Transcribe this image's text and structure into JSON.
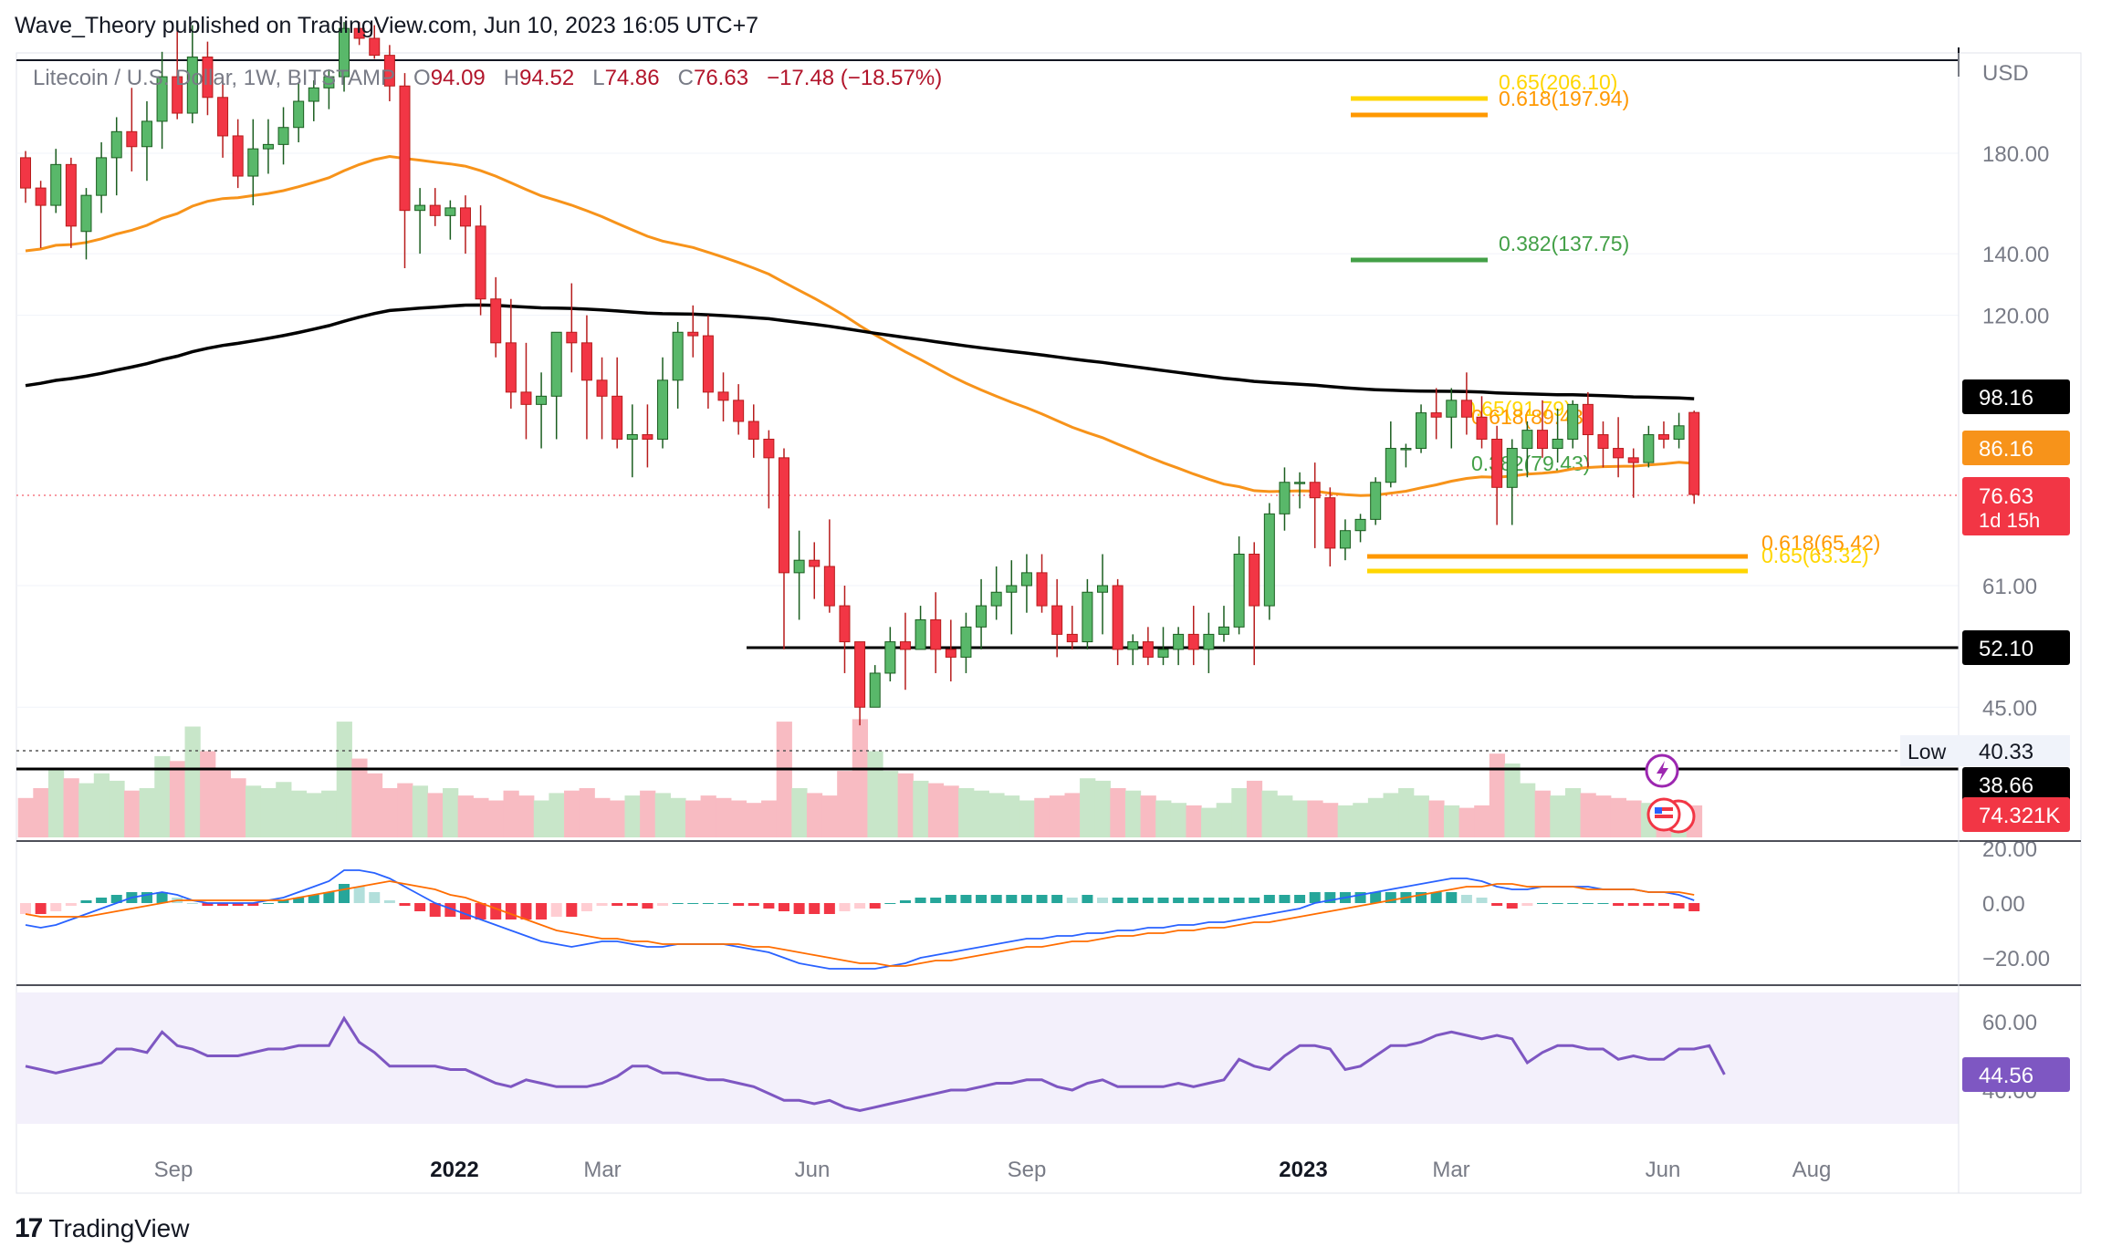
{
  "header": {
    "publisher": "Wave_Theory published on TradingView.com, Jun 10, 2023 16:05 UTC+7"
  },
  "legend": {
    "symbol": "Litecoin / U.S. Dollar, 1W, BITSTAMP",
    "o_label": "O",
    "o": "94.09",
    "h_label": "H",
    "h": "94.52",
    "l_label": "L",
    "l": "74.86",
    "c_label": "C",
    "c": "76.63",
    "change": "−17.48 (−18.57%)"
  },
  "footer": {
    "brand": "TradingView"
  },
  "colors": {
    "up": "#26a69a",
    "up_fill": "#59b86a",
    "down": "#f23645",
    "ema50": "#f7931a",
    "ma200": "#000000",
    "macd": "#2962ff",
    "signal": "#ff6d00",
    "rsi": "#7e57c2",
    "fib_gold": "#ffd600",
    "fib_orange": "#ff9800",
    "fib_green": "#43a047"
  },
  "chart_data": [
    {
      "type": "candlestick",
      "pane": "price",
      "scale": "log",
      "currency": "USD",
      "y_ticks": [
        "180.00",
        "140.00",
        "120.00",
        "61.00",
        "45.00"
      ],
      "x_ticks": [
        "Sep",
        "2022",
        "Mar",
        "Jun",
        "Sep",
        "2023",
        "Mar",
        "Jun",
        "Aug"
      ],
      "interval": "1W",
      "candles_ohlc": [
        [
          178,
          181,
          159,
          165
        ],
        [
          165,
          168,
          142,
          158
        ],
        [
          158,
          182,
          155,
          175
        ],
        [
          175,
          178,
          142,
          150
        ],
        [
          148,
          165,
          138,
          162
        ],
        [
          162,
          185,
          155,
          178
        ],
        [
          178,
          197,
          162,
          190
        ],
        [
          190,
          212,
          172,
          183
        ],
        [
          183,
          205,
          168,
          195
        ],
        [
          195,
          232,
          182,
          218
        ],
        [
          218,
          245,
          196,
          199
        ],
        [
          199,
          248,
          194,
          229
        ],
        [
          229,
          238,
          198,
          207
        ],
        [
          207,
          218,
          178,
          188
        ],
        [
          188,
          196,
          165,
          170
        ],
        [
          170,
          196,
          158,
          182
        ],
        [
          182,
          196,
          171,
          184
        ],
        [
          184,
          202,
          175,
          192
        ],
        [
          192,
          215,
          185,
          205
        ],
        [
          205,
          216,
          195,
          212
        ],
        [
          212,
          222,
          201,
          218
        ],
        [
          218,
          250,
          210,
          246
        ],
        [
          246,
          250,
          236,
          240
        ],
        [
          240,
          248,
          228,
          230
        ],
        [
          230,
          236,
          205,
          213
        ],
        [
          213,
          220,
          135,
          156
        ],
        [
          156,
          165,
          140,
          158
        ],
        [
          158,
          165,
          150,
          154
        ],
        [
          154,
          160,
          145,
          157
        ],
        [
          157,
          162,
          140,
          150
        ],
        [
          150,
          158,
          120,
          125
        ],
        [
          125,
          132,
          108,
          112
        ],
        [
          112,
          125,
          95,
          99
        ],
        [
          99,
          112,
          88,
          96
        ],
        [
          96,
          104,
          86,
          98
        ],
        [
          98,
          108,
          88,
          115
        ],
        [
          115,
          130,
          104,
          112
        ],
        [
          112,
          120,
          88,
          102
        ],
        [
          102,
          108,
          88,
          98
        ],
        [
          98,
          108,
          86,
          88
        ],
        [
          88,
          96,
          80,
          89
        ],
        [
          89,
          96,
          82,
          88
        ],
        [
          88,
          108,
          86,
          102
        ],
        [
          102,
          118,
          95,
          115
        ],
        [
          115,
          123,
          108,
          114
        ],
        [
          114,
          120,
          95,
          99
        ],
        [
          99,
          104,
          92,
          97
        ],
        [
          97,
          101,
          89,
          92
        ],
        [
          92,
          96,
          84,
          88
        ],
        [
          88,
          90,
          74,
          84
        ],
        [
          84,
          86,
          52,
          63
        ],
        [
          63,
          70,
          56,
          65
        ],
        [
          65,
          68,
          59,
          64
        ],
        [
          64,
          72,
          57,
          58
        ],
        [
          58,
          61,
          49,
          53
        ],
        [
          53,
          53,
          43,
          45
        ],
        [
          45,
          50,
          45,
          49
        ],
        [
          49,
          55,
          48,
          53
        ],
        [
          53,
          57,
          47,
          52
        ],
        [
          52,
          58,
          52,
          56
        ],
        [
          56,
          60,
          49,
          52
        ],
        [
          52,
          56,
          48,
          51
        ],
        [
          51,
          57,
          49,
          55
        ],
        [
          55,
          62,
          52,
          58
        ],
        [
          58,
          64,
          56,
          60
        ],
        [
          60,
          65,
          54,
          61
        ],
        [
          61,
          66,
          57,
          63
        ],
        [
          63,
          66,
          57,
          58
        ],
        [
          58,
          62,
          51,
          54
        ],
        [
          54,
          58,
          52,
          53
        ],
        [
          53,
          62,
          52,
          60
        ],
        [
          60,
          66,
          54,
          61
        ],
        [
          61,
          62,
          50,
          52
        ],
        [
          52,
          54,
          50,
          53
        ],
        [
          53,
          55,
          50,
          51
        ],
        [
          51,
          55,
          50,
          52
        ],
        [
          52,
          55,
          50,
          54
        ],
        [
          54,
          58,
          50,
          52
        ],
        [
          52,
          57,
          49,
          54
        ],
        [
          54,
          58,
          53,
          55
        ],
        [
          55,
          69,
          54,
          66
        ],
        [
          66,
          68,
          50,
          58
        ],
        [
          58,
          75,
          56,
          73
        ],
        [
          73,
          82,
          70,
          79
        ],
        [
          79,
          81,
          74,
          79
        ],
        [
          79,
          83,
          67,
          76
        ],
        [
          76,
          78,
          64,
          67
        ],
        [
          67,
          72,
          65,
          70
        ],
        [
          70,
          73,
          68,
          72
        ],
        [
          72,
          80,
          71,
          79
        ],
        [
          79,
          92,
          78,
          86
        ],
        [
          86,
          87,
          82,
          86
        ],
        [
          86,
          96,
          85,
          94
        ],
        [
          94,
          100,
          88,
          93
        ],
        [
          93,
          100,
          86,
          97
        ],
        [
          97,
          104,
          89,
          93
        ],
        [
          93,
          98,
          86,
          88
        ],
        [
          88,
          91,
          71,
          78
        ],
        [
          78,
          88,
          71,
          86
        ],
        [
          86,
          92,
          80,
          90
        ],
        [
          90,
          97,
          84,
          86
        ],
        [
          86,
          95,
          83,
          88
        ],
        [
          88,
          97,
          86,
          96
        ],
        [
          96,
          99,
          82,
          89
        ],
        [
          89,
          92,
          82,
          86
        ],
        [
          86,
          93,
          80,
          84
        ],
        [
          84,
          86,
          76,
          83
        ],
        [
          83,
          91,
          82,
          89
        ],
        [
          89,
          92,
          86,
          88
        ],
        [
          88,
          94,
          86,
          91
        ],
        [
          94.09,
          94.52,
          74.86,
          76.63
        ]
      ],
      "ema50_label": "86.16",
      "ma200_label": "98.16",
      "last_price": "76.63",
      "countdown": "1d 15h",
      "support_levels": [
        "52.10",
        "38.66"
      ],
      "low_label": "Low",
      "low_value": "40.33",
      "fib_levels": [
        {
          "label": "0.65(206.10)",
          "value": 206.1,
          "color": "#ffd600"
        },
        {
          "label": "0.618(197.94)",
          "value": 197.94,
          "color": "#ff9800"
        },
        {
          "label": "0.382(137.75)",
          "value": 137.75,
          "color": "#43a047"
        },
        {
          "label": "0.65(91.79)",
          "value": 91.79,
          "color": "#ffd600"
        },
        {
          "label": "0.618(89.43)",
          "value": 89.43,
          "color": "#ff9800"
        },
        {
          "label": "0.382(79.43)",
          "value": 79.43,
          "color": "#43a047"
        },
        {
          "label": "0.618(65.42)",
          "value": 65.42,
          "color": "#ff9800"
        },
        {
          "label": "0.65(63.32)",
          "value": 63.32,
          "color": "#ffd600"
        }
      ]
    },
    {
      "type": "area",
      "pane": "volume",
      "last_label": "74.321K",
      "values": [
        32,
        40,
        55,
        48,
        44,
        52,
        46,
        38,
        40,
        66,
        62,
        90,
        70,
        55,
        48,
        42,
        40,
        45,
        38,
        36,
        38,
        94,
        64,
        52,
        40,
        44,
        42,
        36,
        40,
        34,
        32,
        30,
        38,
        34,
        30,
        36,
        38,
        40,
        32,
        30,
        34,
        38,
        36,
        32,
        30,
        34,
        32,
        30,
        28,
        30,
        94,
        40,
        36,
        34,
        54,
        96,
        70,
        54,
        52,
        46,
        44,
        42,
        40,
        38,
        36,
        34,
        30,
        32,
        34,
        36,
        48,
        46,
        40,
        38,
        34,
        30,
        28,
        26,
        24,
        28,
        40,
        46,
        38,
        34,
        30,
        30,
        28,
        26,
        28,
        32,
        36,
        40,
        34,
        30,
        26,
        24,
        26,
        68,
        60,
        44,
        38,
        34,
        40,
        36,
        34,
        32,
        30,
        28,
        30,
        30,
        26
      ]
    },
    {
      "type": "macd",
      "pane": "macd",
      "y_ticks": [
        "20.00",
        "0.00",
        "−20.00"
      ],
      "macd": [
        -8,
        -9,
        -8,
        -6,
        -4,
        -2,
        0,
        2,
        3,
        4,
        3,
        1,
        0,
        0,
        0,
        0,
        1,
        2,
        4,
        6,
        8,
        12,
        12,
        11,
        9,
        6,
        3,
        0,
        -2,
        -4,
        -6,
        -8,
        -10,
        -12,
        -14,
        -15,
        -16,
        -15,
        -14,
        -14,
        -15,
        -16,
        -16,
        -15,
        -15,
        -15,
        -15,
        -16,
        -17,
        -18,
        -20,
        -22,
        -23,
        -24,
        -24,
        -24,
        -24,
        -23,
        -22,
        -20,
        -19,
        -18,
        -17,
        -16,
        -15,
        -14,
        -13,
        -13,
        -12,
        -12,
        -11,
        -11,
        -10,
        -10,
        -9,
        -9,
        -8,
        -8,
        -7,
        -7,
        -6,
        -5,
        -4,
        -3,
        -2,
        0,
        1,
        2,
        3,
        4,
        5,
        6,
        7,
        8,
        9,
        9,
        8,
        6,
        5,
        5,
        6,
        6,
        6,
        6,
        5,
        5,
        5,
        4,
        4,
        3,
        1
      ],
      "signal": [
        -4,
        -5,
        -5,
        -5,
        -5,
        -4,
        -3,
        -2,
        -1,
        0,
        1,
        1,
        1,
        1,
        1,
        1,
        1,
        1,
        2,
        3,
        4,
        5,
        6,
        7,
        8,
        7,
        6,
        5,
        3,
        2,
        0,
        -2,
        -4,
        -6,
        -8,
        -10,
        -11,
        -12,
        -13,
        -13,
        -14,
        -14,
        -15,
        -15,
        -15,
        -15,
        -15,
        -15,
        -16,
        -16,
        -17,
        -18,
        -19,
        -20,
        -21,
        -22,
        -22,
        -23,
        -23,
        -22,
        -21,
        -21,
        -20,
        -19,
        -18,
        -17,
        -16,
        -16,
        -15,
        -14,
        -14,
        -13,
        -12,
        -12,
        -11,
        -11,
        -10,
        -10,
        -9,
        -9,
        -8,
        -7,
        -7,
        -6,
        -5,
        -4,
        -3,
        -2,
        -1,
        0,
        1,
        2,
        3,
        4,
        5,
        6,
        6,
        7,
        7,
        6,
        6,
        6,
        6,
        5,
        5,
        5,
        5,
        4,
        4,
        4,
        3
      ],
      "histogram": [
        -4,
        -4,
        -3,
        -1,
        1,
        2,
        3,
        4,
        4,
        4,
        2,
        0,
        -1,
        -1,
        -1,
        -1,
        0,
        1,
        2,
        3,
        4,
        7,
        6,
        4,
        1,
        -1,
        -3,
        -5,
        -5,
        -6,
        -6,
        -6,
        -6,
        -6,
        -6,
        -5,
        -5,
        -3,
        -1,
        -1,
        -1,
        -2,
        -1,
        0,
        0,
        0,
        0,
        -1,
        -1,
        -2,
        -3,
        -4,
        -4,
        -4,
        -3,
        -2,
        -2,
        0,
        1,
        2,
        2,
        3,
        3,
        3,
        3,
        3,
        3,
        3,
        3,
        2,
        3,
        2,
        2,
        2,
        2,
        2,
        2,
        2,
        2,
        2,
        2,
        2,
        3,
        3,
        3,
        4,
        4,
        4,
        4,
        4,
        4,
        4,
        4,
        4,
        4,
        3,
        2,
        -1,
        -2,
        -1,
        0,
        0,
        0,
        0,
        0,
        -1,
        -1,
        -1,
        -1,
        -2,
        -3
      ]
    },
    {
      "type": "line",
      "pane": "rsi",
      "y_ticks": [
        "60.00",
        "40.00"
      ],
      "last_label": "44.56",
      "values": [
        47,
        46,
        45,
        46,
        47,
        48,
        52,
        52,
        51,
        57,
        53,
        52,
        50,
        50,
        50,
        51,
        52,
        52,
        53,
        53,
        53,
        61,
        54,
        51,
        47,
        47,
        47,
        47,
        46,
        46,
        44,
        42,
        41,
        43,
        42,
        41,
        41,
        41,
        42,
        44,
        47,
        47,
        45,
        45,
        44,
        43,
        43,
        42,
        41,
        39,
        37,
        37,
        36,
        37,
        35,
        34,
        35,
        36,
        37,
        38,
        39,
        40,
        40,
        41,
        42,
        42,
        43,
        43,
        41,
        40,
        42,
        43,
        41,
        41,
        41,
        41,
        42,
        41,
        42,
        43,
        49,
        47,
        46,
        50,
        53,
        53,
        52,
        46,
        47,
        50,
        53,
        53,
        54,
        56,
        57,
        56,
        55,
        56,
        55,
        48,
        51,
        53,
        53,
        52,
        52,
        49,
        50,
        49,
        49,
        52,
        52,
        53,
        44.56
      ]
    }
  ]
}
